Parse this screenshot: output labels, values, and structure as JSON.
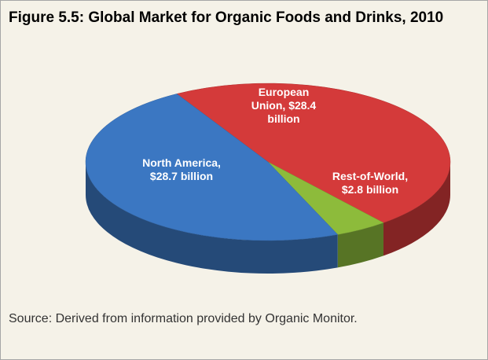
{
  "chart_data": {
    "type": "pie",
    "title": "Figure 5.5: Global Market for Organic Foods and Drinks, 2010",
    "categories": [
      "European Union,",
      "Rest-of-World,",
      "North America,"
    ],
    "values": [
      28.4,
      2.8,
      28.7
    ],
    "value_labels": [
      "$28.4 billion",
      "$2.8 billion",
      "$28.7 billion"
    ],
    "colors": [
      "#d43a3a",
      "#8dbb3b",
      "#3b77c2"
    ],
    "source": "Source: Derived from information provided by Organic Monitor."
  }
}
